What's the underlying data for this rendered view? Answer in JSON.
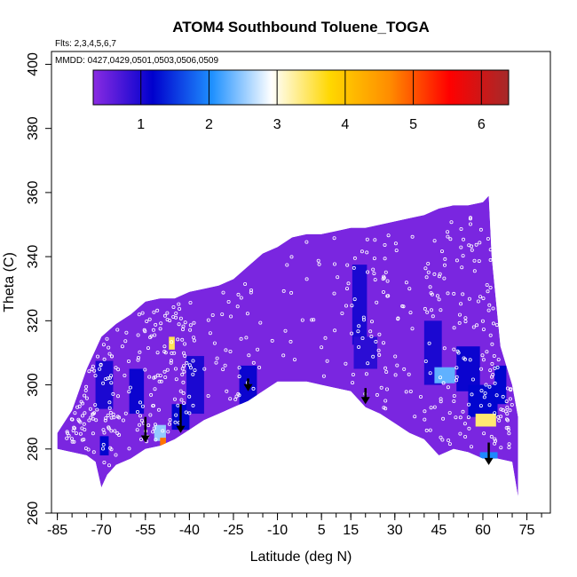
{
  "chart_data": {
    "type": "heatmap",
    "title": "ATOM4 Southbound Toluene_TOGA",
    "annotations": {
      "flights": "Flts: 2,3,4,5,6,7",
      "dates": "MMDD: 0427,0429,0501,0503,0506,0509"
    },
    "xlabel": "Latitude (deg N)",
    "ylabel": "Theta (C)",
    "xlim": [
      -87,
      83
    ],
    "ylim": [
      260,
      404
    ],
    "x_ticks": [
      -85,
      -70,
      -55,
      -40,
      -25,
      -10,
      5,
      15,
      30,
      45,
      60,
      75
    ],
    "x_tick_labels": [
      "-85",
      "-70",
      "-55",
      "-40",
      "-25",
      "-10",
      "5",
      "15",
      "30",
      "45",
      "60",
      "75"
    ],
    "x_minor_step": 5,
    "y_ticks": [
      260,
      280,
      300,
      320,
      340,
      360,
      380,
      400
    ],
    "y_tick_labels": [
      "260",
      "280",
      "300",
      "320",
      "340",
      "360",
      "380",
      "400"
    ],
    "colorbar": {
      "range": [
        0.3,
        6.4
      ],
      "ticks": [
        1,
        2,
        3,
        4,
        5,
        6
      ],
      "tick_labels": [
        "1",
        "2",
        "3",
        "4",
        "5",
        "6"
      ],
      "colors": [
        "#8a2be2",
        "#0000cd",
        "#1e90ff",
        "#ffffff",
        "#ffd700",
        "#ff8c00",
        "#ff0000",
        "#a52a2a"
      ]
    },
    "field_background_value": 0.4,
    "field_outline": {
      "upper_theta": [
        [
          -85,
          285
        ],
        [
          -80,
          292
        ],
        [
          -75,
          305
        ],
        [
          -70,
          315
        ],
        [
          -65,
          319
        ],
        [
          -60,
          322
        ],
        [
          -55,
          326
        ],
        [
          -50,
          327
        ],
        [
          -45,
          327
        ],
        [
          -40,
          329
        ],
        [
          -35,
          330
        ],
        [
          -30,
          331
        ],
        [
          -25,
          333
        ],
        [
          -20,
          337
        ],
        [
          -15,
          341
        ],
        [
          -10,
          343
        ],
        [
          -5,
          346
        ],
        [
          0,
          347
        ],
        [
          5,
          347
        ],
        [
          10,
          348
        ],
        [
          15,
          349
        ],
        [
          20,
          349
        ],
        [
          25,
          350
        ],
        [
          30,
          351
        ],
        [
          35,
          352
        ],
        [
          40,
          353
        ],
        [
          45,
          355
        ],
        [
          50,
          356
        ],
        [
          55,
          356
        ],
        [
          60,
          357
        ],
        [
          62,
          359
        ],
        [
          63,
          340
        ],
        [
          66,
          312
        ],
        [
          70,
          300
        ],
        [
          72,
          290
        ]
      ],
      "lower_theta": [
        [
          72,
          265
        ],
        [
          70,
          276
        ],
        [
          65,
          277
        ],
        [
          60,
          277
        ],
        [
          55,
          279
        ],
        [
          50,
          280
        ],
        [
          45,
          278
        ],
        [
          40,
          283
        ],
        [
          35,
          285
        ],
        [
          30,
          288
        ],
        [
          25,
          291
        ],
        [
          20,
          293
        ],
        [
          15,
          298
        ],
        [
          10,
          299
        ],
        [
          5,
          300
        ],
        [
          0,
          301
        ],
        [
          -5,
          301
        ],
        [
          -10,
          301
        ],
        [
          -15,
          298
        ],
        [
          -20,
          295
        ],
        [
          -25,
          293
        ],
        [
          -30,
          291
        ],
        [
          -35,
          289
        ],
        [
          -40,
          286
        ],
        [
          -45,
          283
        ],
        [
          -50,
          281
        ],
        [
          -55,
          280
        ],
        [
          -60,
          277
        ],
        [
          -65,
          275
        ],
        [
          -68,
          272
        ],
        [
          -70,
          268
        ],
        [
          -72,
          276
        ],
        [
          -75,
          278
        ],
        [
          -80,
          279
        ],
        [
          -85,
          280
        ]
      ]
    },
    "features": [
      {
        "lat": -69,
        "theta": 281,
        "value": 1.2,
        "lat_width": 3,
        "theta_height": 6
      },
      {
        "lat": -69,
        "theta": 300,
        "value": 1.0,
        "lat_width": 6,
        "theta_height": 15
      },
      {
        "lat": -58,
        "theta": 298,
        "value": 1.1,
        "lat_width": 5,
        "theta_height": 14
      },
      {
        "lat": -50,
        "theta": 285,
        "value": 2.5,
        "lat_width": 4,
        "theta_height": 5
      },
      {
        "lat": -49,
        "theta": 282,
        "value": 4.8,
        "lat_width": 2,
        "theta_height": 3
      },
      {
        "lat": -46,
        "theta": 313,
        "value": 3.5,
        "lat_width": 2,
        "theta_height": 4
      },
      {
        "lat": -43,
        "theta": 290,
        "value": 1.2,
        "lat_width": 6,
        "theta_height": 8
      },
      {
        "lat": -38,
        "theta": 300,
        "value": 1.0,
        "lat_width": 6,
        "theta_height": 18
      },
      {
        "lat": -20,
        "theta": 300,
        "value": 1.1,
        "lat_width": 6,
        "theta_height": 12
      },
      {
        "lat": 18,
        "theta": 325,
        "value": 1.0,
        "lat_width": 5,
        "theta_height": 25
      },
      {
        "lat": 20,
        "theta": 310,
        "value": 0.9,
        "lat_width": 8,
        "theta_height": 10
      },
      {
        "lat": 43,
        "theta": 310,
        "value": 1.0,
        "lat_width": 6,
        "theta_height": 20
      },
      {
        "lat": 47,
        "theta": 303,
        "value": 2.3,
        "lat_width": 7,
        "theta_height": 5
      },
      {
        "lat": 55,
        "theta": 305,
        "value": 1.1,
        "lat_width": 8,
        "theta_height": 14
      },
      {
        "lat": 60,
        "theta": 295,
        "value": 1.2,
        "lat_width": 10,
        "theta_height": 10
      },
      {
        "lat": 61,
        "theta": 289,
        "value": 3.4,
        "lat_width": 7,
        "theta_height": 4
      },
      {
        "lat": 62,
        "theta": 278,
        "value": 2.0,
        "lat_width": 6,
        "theta_height": 2
      },
      {
        "lat": 66,
        "theta": 300,
        "value": 1.2,
        "lat_width": 4,
        "theta_height": 12
      }
    ],
    "profile_arrows": [
      {
        "lat": -55,
        "theta_top": 290,
        "theta_bottom": 282
      },
      {
        "lat": -43,
        "theta_top": 294,
        "theta_bottom": 285
      },
      {
        "lat": -20,
        "theta_top": 302,
        "theta_bottom": 298
      },
      {
        "lat": 20,
        "theta_top": 299,
        "theta_bottom": 294
      },
      {
        "lat": 62,
        "theta_top": 282,
        "theta_bottom": 275
      }
    ],
    "sample_points_note": "small white open circles mark individual TOGA samples"
  }
}
